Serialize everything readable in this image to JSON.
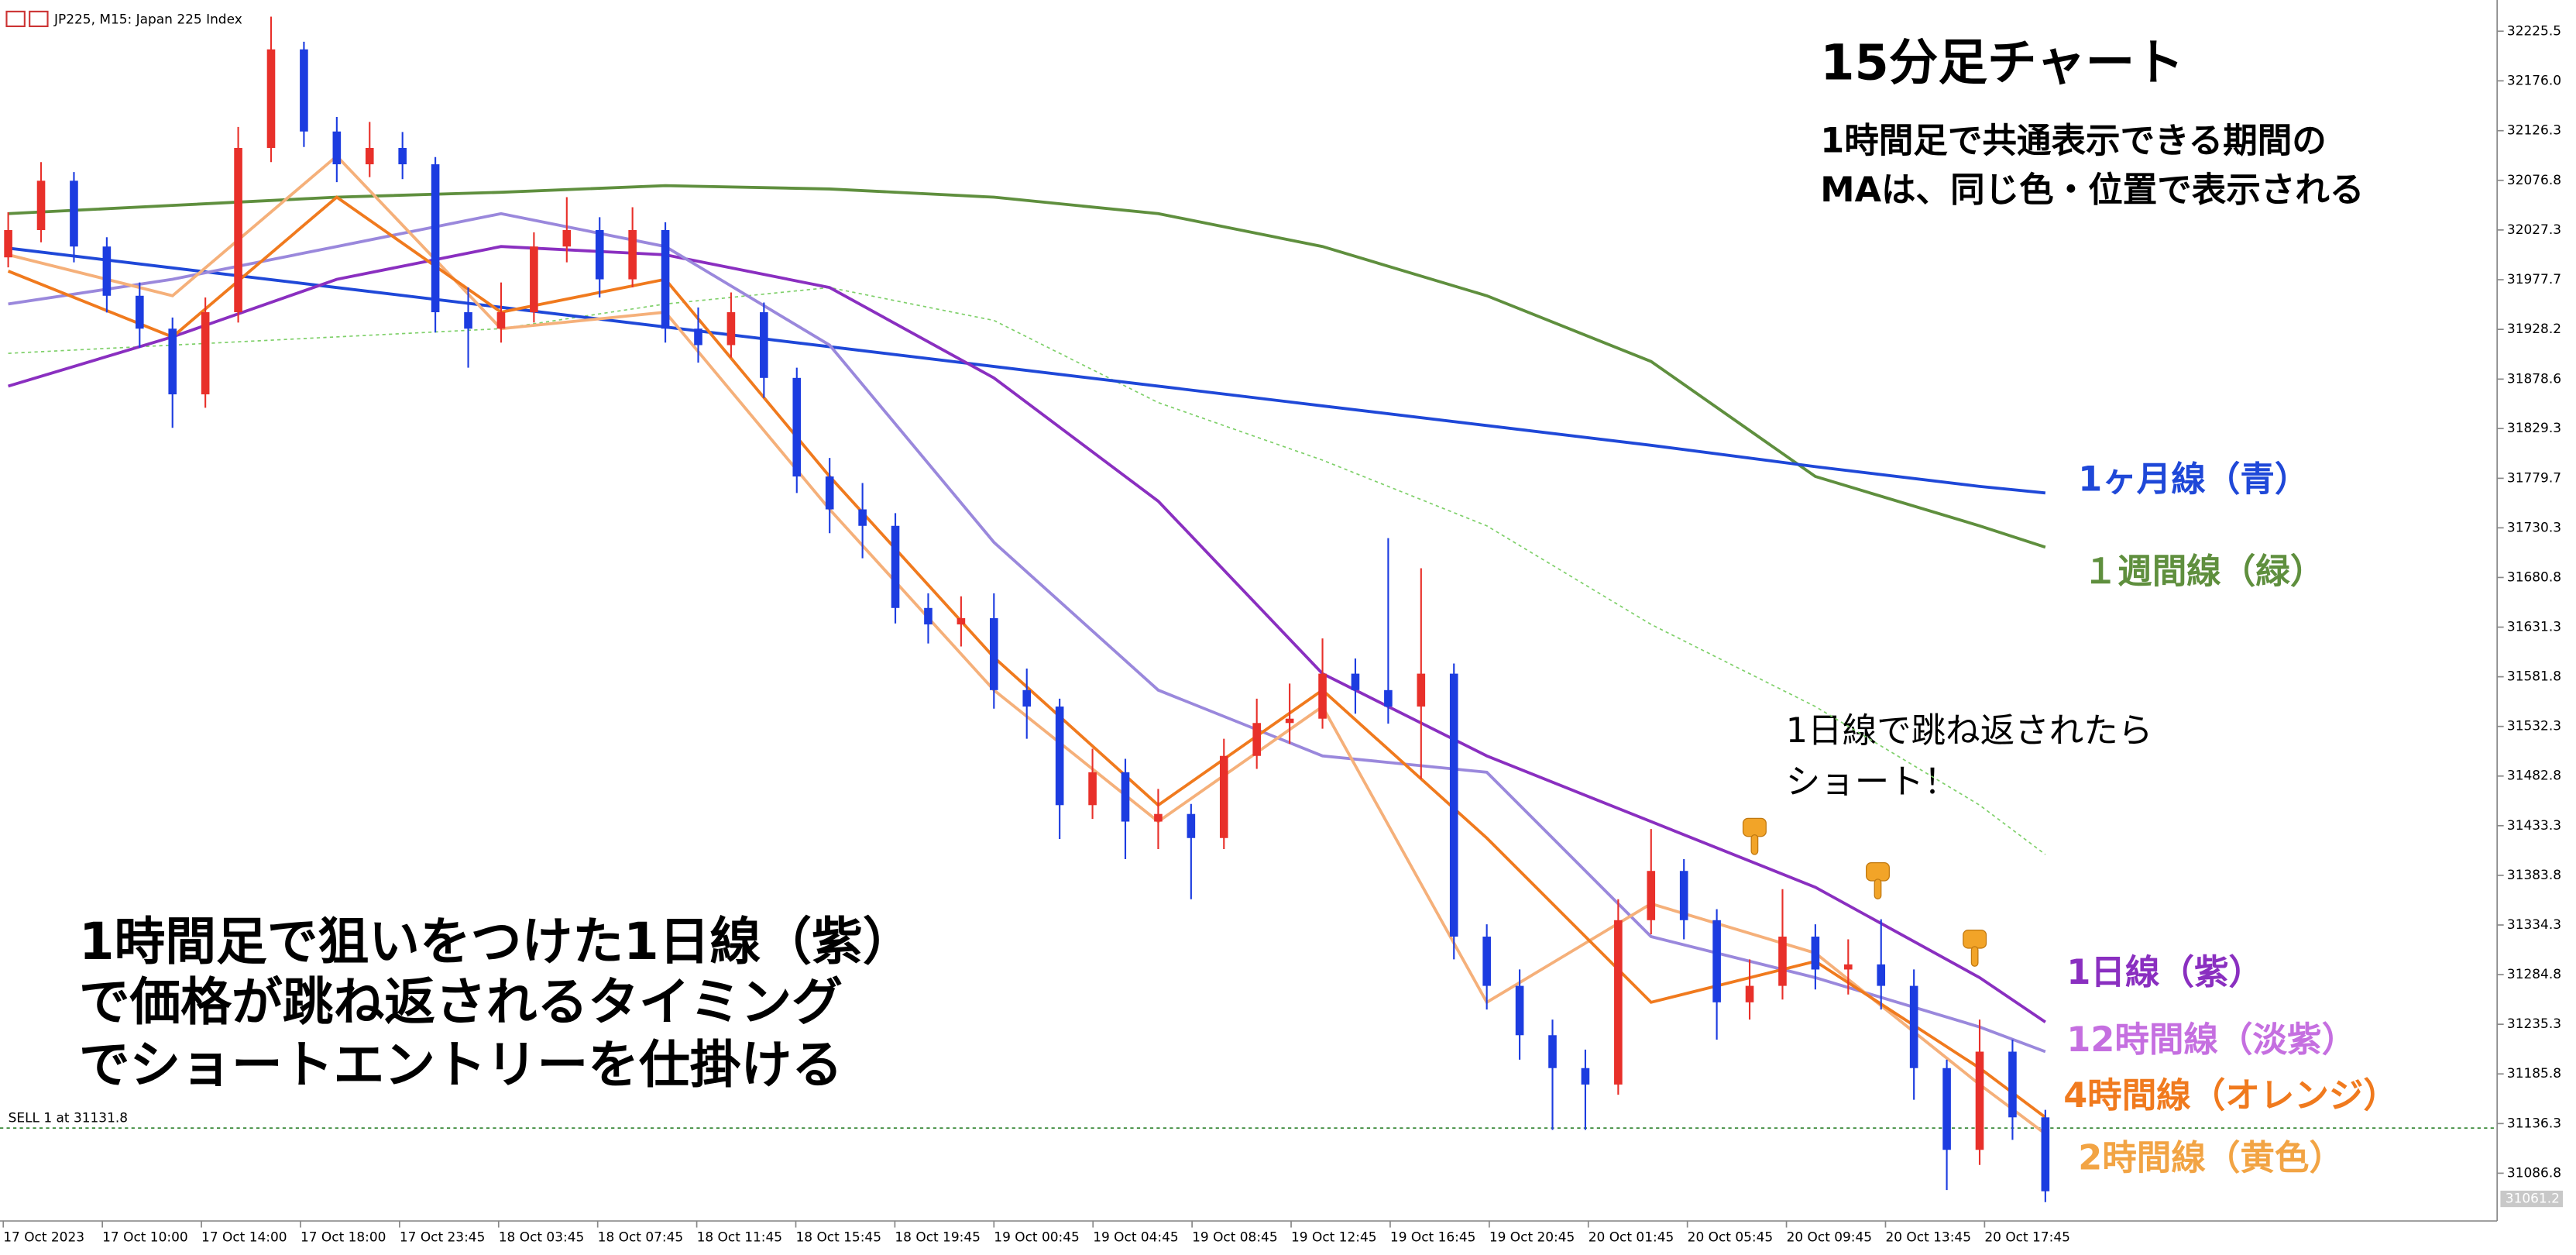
{
  "chart_data": {
    "type": "candlestick",
    "symbol": "JP225, M15:  Japan 225 Index",
    "title": "15分足チャート",
    "subtitle_lines": [
      "1時間足で共通表示できる期間の",
      "MAは、同じ色・位置で表示される"
    ],
    "callout_lines": [
      "1日線で跳ね返されたら",
      "ショート！"
    ],
    "strategy_lines": [
      "1時間足で狙いをつけた1日線（紫）",
      "で価格が跳ね返されるタイミング",
      "でショートエントリーを仕掛ける"
    ],
    "up_color": "#e8302a",
    "down_color": "#1c3ce0",
    "open": [
      32000.0,
      32027.2,
      32076.4,
      32010.8,
      31961.7,
      31928.9,
      31863.4,
      31945.3,
      32109.1,
      32207.4,
      32125.5,
      32092.8,
      32109.1,
      32092.8,
      31945.3,
      31928.9,
      31945.3,
      32010.8,
      32027.2,
      31978.1,
      32027.2,
      31928.9,
      31912.5,
      31945.3,
      31879.8,
      31781.5,
      31748.7,
      31732.3,
      31650.4,
      31634.0,
      31640.2,
      31568.5,
      31552.1,
      31453.8,
      31486.6,
      31437.4,
      31445.0,
      31421.0,
      31502.9,
      31535.7,
      31540.0,
      31584.9,
      31568.5,
      31552.1,
      31584.9,
      31322.7,
      31273.6,
      31224.4,
      31191.6,
      31175.2,
      31339.1,
      31388.2,
      31339.1,
      31257.2,
      31273.6,
      31322.7,
      31289.9,
      31295.0,
      31273.6,
      31191.6,
      31110.1,
      31208.0,
      31142.5
    ],
    "high": [
      32045.0,
      32095.0,
      32085.0,
      32020.0,
      31975.0,
      31940.0,
      31960.0,
      32130.0,
      32240.0,
      32215.0,
      32140.0,
      32135.0,
      32125.0,
      32100.0,
      31970.0,
      31975.0,
      32025.0,
      32060.0,
      32040.0,
      32050.0,
      32035.0,
      31950.0,
      31965.0,
      31955.0,
      31890.0,
      31800.0,
      31775.0,
      31745.0,
      31665.0,
      31662.0,
      31665.0,
      31590.0,
      31560.0,
      31510.0,
      31500.0,
      31470.0,
      31455.0,
      31520.0,
      31560.0,
      31575.0,
      31620.0,
      31600.0,
      31720.0,
      31690.0,
      31595.0,
      31335.0,
      31290.0,
      31240.0,
      31210.0,
      31360.0,
      31430.0,
      31400.0,
      31350.0,
      31300.0,
      31370.0,
      31335.0,
      31320.0,
      31340.0,
      31290.0,
      31200.0,
      31240.0,
      31220.0,
      31150.0
    ],
    "low": [
      31990.0,
      32015.0,
      31995.0,
      31945.0,
      31910.0,
      31830.0,
      31850.0,
      31935.0,
      32095.0,
      32110.0,
      32075.0,
      32080.0,
      32078.0,
      31925.0,
      31890.0,
      31915.0,
      31935.0,
      31995.0,
      31960.0,
      31970.0,
      31915.0,
      31895.0,
      31900.0,
      31860.0,
      31765.0,
      31725.0,
      31700.0,
      31635.0,
      31615.0,
      31612.0,
      31550.0,
      31520.0,
      31420.0,
      31440.0,
      31400.0,
      31410.0,
      31360.0,
      31410.0,
      31490.0,
      31515.0,
      31530.0,
      31545.0,
      31535.0,
      31480.0,
      31300.0,
      31250.0,
      31200.0,
      31130.0,
      31130.0,
      31165.0,
      31325.0,
      31320.0,
      31220.0,
      31240.0,
      31260.0,
      31270.0,
      31265.0,
      31250.0,
      31160.0,
      31070.0,
      31095.0,
      31120.0,
      31058.0
    ],
    "close": [
      32027.2,
      32076.4,
      32010.8,
      31961.7,
      31928.9,
      31863.4,
      31945.3,
      32109.1,
      32207.4,
      32125.5,
      32092.8,
      32109.1,
      32092.8,
      31945.3,
      31928.9,
      31945.3,
      32010.8,
      32027.2,
      31978.1,
      32027.2,
      31928.9,
      31912.5,
      31945.3,
      31879.8,
      31781.5,
      31748.7,
      31732.3,
      31650.4,
      31634.0,
      31640.2,
      31568.5,
      31552.1,
      31453.8,
      31486.6,
      31437.4,
      31445.0,
      31421.0,
      31502.9,
      31535.7,
      31540.0,
      31584.9,
      31568.5,
      31552.1,
      31584.9,
      31322.7,
      31273.6,
      31224.4,
      31191.6,
      31175.2,
      31339.1,
      31388.2,
      31339.1,
      31257.2,
      31273.6,
      31322.7,
      31289.9,
      31295.0,
      31273.6,
      31191.6,
      31110.1,
      31208.0,
      31142.5,
      31068.8
    ],
    "ma_x": [
      0,
      5,
      10,
      15,
      20,
      25,
      30,
      35,
      40,
      45,
      50,
      55,
      60,
      62
    ],
    "series": [
      {
        "color": "#7fd06a",
        "style": "dotted",
        "values": [
          31904.3,
          31912.5,
          31920.7,
          31928.9,
          31953.5,
          31969.9,
          31937.1,
          31855.2,
          31797.8,
          31732.3,
          31634.0,
          31552.1,
          31453.8,
          31404.6
        ]
      },
      {
        "name": "１週間線（緑）",
        "color": "#5f8f3e",
        "values": [
          32043.6,
          32051.8,
          32060.0,
          32064.9,
          32071.5,
          32068.2,
          32060.0,
          32043.6,
          32010.8,
          31961.7,
          31896.2,
          31781.5,
          31732.3,
          31711.0
        ]
      },
      {
        "name": "1ヶ月線（青）",
        "color": "#1f48d8",
        "values": [
          32009.2,
          31989.5,
          31969.9,
          31950.2,
          31930.6,
          31910.9,
          31891.2,
          31871.6,
          31851.9,
          31832.3,
          31812.6,
          31791.3,
          31771.6,
          31765.1
        ]
      },
      {
        "name": "1日線（紫）",
        "color": "#8a2fc0",
        "values": [
          31871.6,
          31920.7,
          31978.1,
          32010.8,
          32002.6,
          31969.9,
          31879.8,
          31756.9,
          31584.9,
          31502.9,
          31437.4,
          31371.9,
          31281.8,
          31237.5
        ]
      },
      {
        "name": "12時間線（淡紫）",
        "color": "#9a88dc",
        "values": [
          31953.5,
          31978.1,
          32010.8,
          32043.6,
          32010.8,
          31912.5,
          31715.9,
          31568.5,
          31502.9,
          31486.6,
          31322.7,
          31281.8,
          31232.6,
          31208.0
        ]
      },
      {
        "name": "2時間線（黄色）",
        "color": "#f5b07a",
        "values": [
          32002.6,
          31961.7,
          32101.0,
          31928.9,
          31945.3,
          31748.7,
          31568.5,
          31437.4,
          31552.1,
          31257.2,
          31355.5,
          31306.3,
          31175.3,
          31126.1
        ]
      },
      {
        "name": "4時間線（オレンジ）",
        "color": "#f07a1e",
        "values": [
          31986.3,
          31920.7,
          32060.0,
          31945.3,
          31978.1,
          31781.5,
          31601.2,
          31453.8,
          31568.5,
          31421.0,
          31257.2,
          31298.1,
          31191.6,
          31142.5
        ]
      }
    ],
    "label_colors": {
      "１週間線（緑）": "#5f8f3e",
      "1ヶ月線（青）": "#1f48d8",
      "1日線（紫）": "#8a2fc0",
      "12時間線（淡紫）": "#c56fe0",
      "2時間線（黄色）": "#f2a444",
      "4時間線（オレンジ）": "#f07a1e"
    },
    "order_line": {
      "label": "SELL 1 at 31131.8",
      "value": 31131.8,
      "color": "#3a8a3a"
    },
    "price_tag": 31061.2,
    "ylim": [
      31040,
      32252
    ],
    "yticks": [
      32225.5,
      {
        "value": 32176.0,
        "label": "32176.0"
      },
      32126.3,
      32076.8,
      32027.3,
      31977.7,
      31928.2,
      31878.6,
      31829.3,
      31779.7,
      31730.3,
      31680.8,
      31631.3,
      31581.8,
      31532.3,
      31482.8,
      31433.3,
      31383.8,
      31334.3,
      31284.8,
      31235.3,
      31185.8,
      31136.3,
      31086.8
    ],
    "time_labels": [
      "17 Oct 2023",
      "17 Oct 10:00",
      "17 Oct 14:00",
      "17 Oct 18:00",
      "17 Oct 23:45",
      "18 Oct 03:45",
      "18 Oct 07:45",
      "18 Oct 11:45",
      "18 Oct 15:45",
      "18 Oct 19:45",
      "19 Oct 00:45",
      "19 Oct 04:45",
      "19 Oct 08:45",
      "19 Oct 12:45",
      "19 Oct 16:45",
      "19 Oct 20:45",
      "20 Oct 01:45",
      "20 Oct 05:45",
      "20 Oct 09:45",
      "20 Oct 13:45",
      "20 Oct 17:45"
    ]
  }
}
